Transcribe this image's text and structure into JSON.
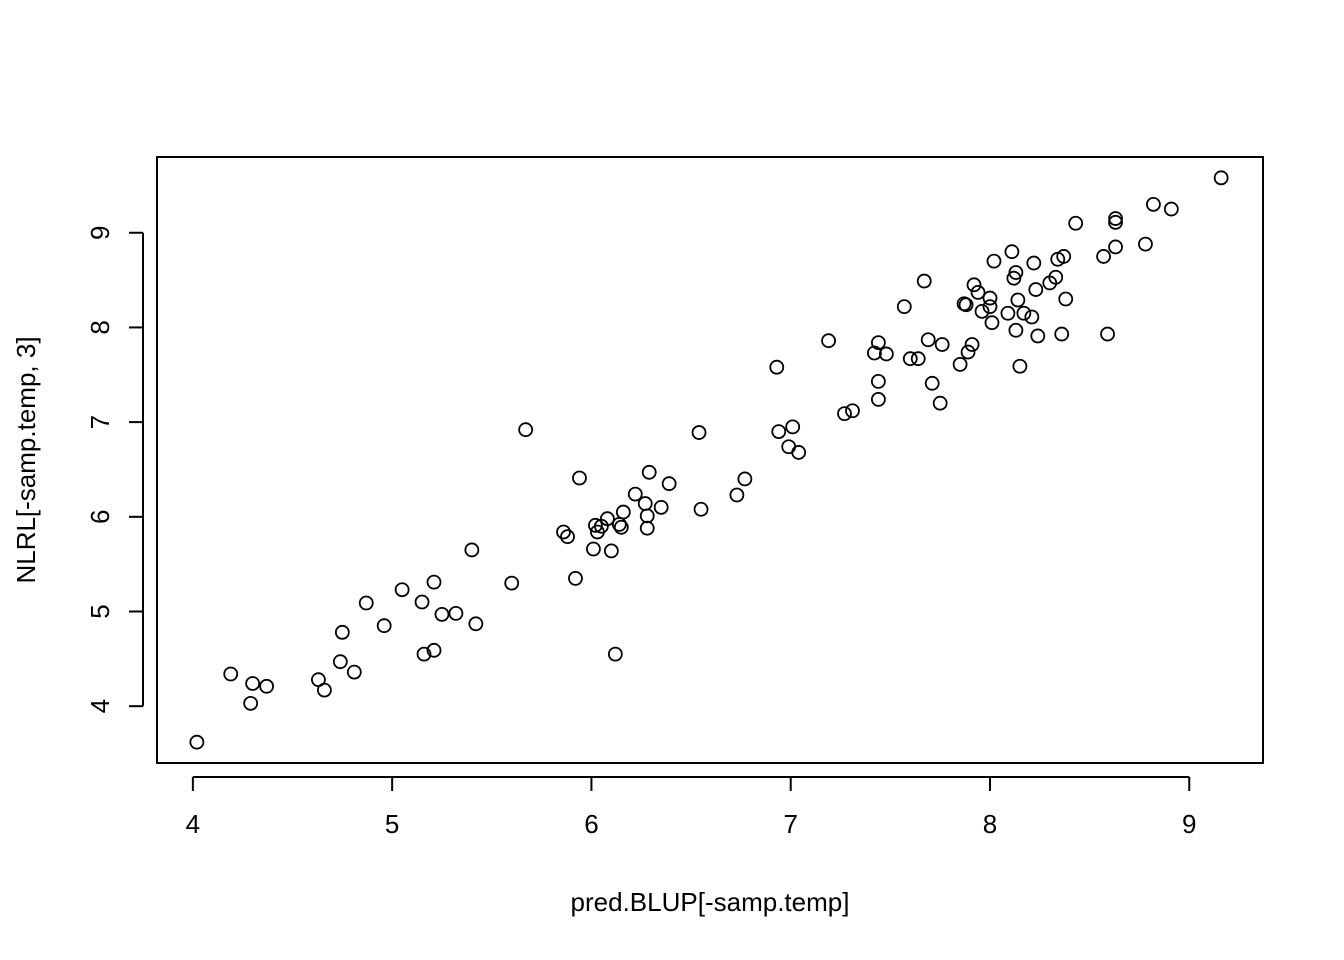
{
  "chart_data": {
    "type": "scatter",
    "title": "",
    "xlabel": "pred.BLUP[-samp.temp]",
    "ylabel": "NLRL[-samp.temp, 3]",
    "xlim": [
      3.82,
      9.37
    ],
    "ylim": [
      3.4,
      9.8
    ],
    "x_ticks": [
      4,
      5,
      6,
      7,
      8,
      9
    ],
    "y_ticks": [
      4,
      5,
      6,
      7,
      8,
      9
    ],
    "grid": false,
    "legend": "none",
    "marker": "open-circle",
    "color": "#000000",
    "points": [
      [
        4.02,
        3.62
      ],
      [
        4.19,
        4.34
      ],
      [
        4.29,
        4.03
      ],
      [
        4.3,
        4.24
      ],
      [
        4.37,
        4.21
      ],
      [
        4.63,
        4.28
      ],
      [
        4.66,
        4.17
      ],
      [
        4.74,
        4.47
      ],
      [
        4.75,
        4.78
      ],
      [
        4.81,
        4.36
      ],
      [
        4.87,
        5.09
      ],
      [
        4.96,
        4.85
      ],
      [
        5.05,
        5.23
      ],
      [
        5.15,
        5.1
      ],
      [
        5.16,
        4.55
      ],
      [
        5.21,
        4.59
      ],
      [
        5.21,
        5.31
      ],
      [
        5.25,
        4.97
      ],
      [
        5.32,
        4.98
      ],
      [
        5.4,
        5.65
      ],
      [
        5.42,
        4.87
      ],
      [
        5.6,
        5.3
      ],
      [
        5.67,
        6.92
      ],
      [
        5.86,
        5.84
      ],
      [
        5.88,
        5.79
      ],
      [
        5.92,
        5.35
      ],
      [
        5.94,
        6.41
      ],
      [
        6.01,
        5.66
      ],
      [
        6.02,
        5.91
      ],
      [
        6.03,
        5.84
      ],
      [
        6.05,
        5.9
      ],
      [
        6.08,
        5.98
      ],
      [
        6.1,
        5.64
      ],
      [
        6.12,
        4.55
      ],
      [
        6.14,
        5.92
      ],
      [
        6.15,
        5.89
      ],
      [
        6.16,
        6.05
      ],
      [
        6.22,
        6.24
      ],
      [
        6.27,
        6.14
      ],
      [
        6.28,
        6.01
      ],
      [
        6.28,
        5.88
      ],
      [
        6.29,
        6.47
      ],
      [
        6.35,
        6.1
      ],
      [
        6.39,
        6.35
      ],
      [
        6.54,
        6.89
      ],
      [
        6.55,
        6.08
      ],
      [
        6.73,
        6.23
      ],
      [
        6.77,
        6.4
      ],
      [
        6.93,
        7.58
      ],
      [
        6.94,
        6.9
      ],
      [
        6.99,
        6.74
      ],
      [
        7.01,
        6.95
      ],
      [
        7.04,
        6.68
      ],
      [
        7.19,
        7.86
      ],
      [
        7.27,
        7.09
      ],
      [
        7.31,
        7.12
      ],
      [
        7.42,
        7.73
      ],
      [
        7.44,
        7.84
      ],
      [
        7.44,
        7.24
      ],
      [
        7.44,
        7.43
      ],
      [
        7.48,
        7.72
      ],
      [
        7.57,
        8.22
      ],
      [
        7.6,
        7.67
      ],
      [
        7.64,
        7.67
      ],
      [
        7.67,
        8.49
      ],
      [
        7.69,
        7.87
      ],
      [
        7.71,
        7.41
      ],
      [
        7.75,
        7.2
      ],
      [
        7.76,
        7.82
      ],
      [
        7.85,
        7.61
      ],
      [
        7.87,
        8.25
      ],
      [
        7.88,
        8.24
      ],
      [
        7.89,
        7.74
      ],
      [
        7.91,
        7.82
      ],
      [
        7.92,
        8.45
      ],
      [
        7.94,
        8.37
      ],
      [
        7.96,
        8.17
      ],
      [
        8.0,
        8.22
      ],
      [
        8.0,
        8.31
      ],
      [
        8.01,
        8.05
      ],
      [
        8.02,
        8.7
      ],
      [
        8.09,
        8.15
      ],
      [
        8.11,
        8.8
      ],
      [
        8.12,
        8.52
      ],
      [
        8.13,
        8.58
      ],
      [
        8.13,
        7.97
      ],
      [
        8.14,
        8.29
      ],
      [
        8.15,
        7.59
      ],
      [
        8.17,
        8.15
      ],
      [
        8.21,
        8.11
      ],
      [
        8.22,
        8.68
      ],
      [
        8.23,
        8.4
      ],
      [
        8.24,
        7.91
      ],
      [
        8.3,
        8.47
      ],
      [
        8.33,
        8.53
      ],
      [
        8.34,
        8.72
      ],
      [
        8.36,
        7.93
      ],
      [
        8.37,
        8.75
      ],
      [
        8.38,
        8.3
      ],
      [
        8.43,
        9.1
      ],
      [
        8.57,
        8.75
      ],
      [
        8.59,
        7.93
      ],
      [
        8.63,
        9.15
      ],
      [
        8.63,
        9.11
      ],
      [
        8.63,
        8.85
      ],
      [
        8.78,
        8.88
      ],
      [
        8.82,
        9.3
      ],
      [
        8.91,
        9.25
      ],
      [
        9.16,
        9.58
      ]
    ]
  }
}
